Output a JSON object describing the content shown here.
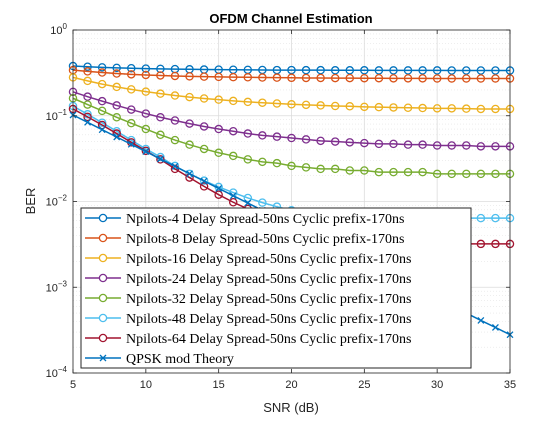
{
  "chart_data": {
    "type": "line",
    "title": "OFDM Channel Estimation",
    "xlabel": "SNR (dB)",
    "ylabel": "BER",
    "xlim": [
      5,
      35
    ],
    "ylim": [
      0.0001,
      1
    ],
    "yscale": "log",
    "grid": true,
    "minor_grid": true,
    "legend_position": "bottom-left",
    "x_ticks": [
      "5",
      "10",
      "15",
      "20",
      "25",
      "30",
      "35"
    ],
    "y_ticks": [
      {
        "value": 0.0001,
        "base": "10",
        "exp": "−4"
      },
      {
        "value": 0.001,
        "base": "10",
        "exp": "−3"
      },
      {
        "value": 0.01,
        "base": "10",
        "exp": "−2"
      },
      {
        "value": 0.1,
        "base": "10",
        "exp": "−1"
      },
      {
        "value": 1,
        "base": "10",
        "exp": "0"
      }
    ],
    "x": [
      5,
      6,
      7,
      8,
      9,
      10,
      11,
      12,
      13,
      14,
      15,
      16,
      17,
      18,
      19,
      20,
      21,
      22,
      23,
      24,
      25,
      26,
      27,
      28,
      29,
      30,
      31,
      32,
      33,
      34,
      35
    ],
    "series": [
      {
        "name": "Npilots-4 Delay Spread-50ns Cyclic prefix-170ns",
        "color": "#0072BD",
        "marker": "circle",
        "values": [
          0.38,
          0.373,
          0.367,
          0.362,
          0.358,
          0.355,
          0.352,
          0.35,
          0.348,
          0.346,
          0.345,
          0.344,
          0.343,
          0.342,
          0.341,
          0.341,
          0.34,
          0.34,
          0.339,
          0.339,
          0.339,
          0.338,
          0.338,
          0.338,
          0.338,
          0.338,
          0.337,
          0.337,
          0.337,
          0.337,
          0.337
        ]
      },
      {
        "name": "Npilots-8 Delay Spread-50ns Cyclic prefix-170ns",
        "color": "#D95319",
        "marker": "circle",
        "values": [
          0.34,
          0.329,
          0.319,
          0.311,
          0.304,
          0.299,
          0.295,
          0.291,
          0.288,
          0.286,
          0.284,
          0.282,
          0.281,
          0.279,
          0.278,
          0.277,
          0.276,
          0.276,
          0.275,
          0.275,
          0.274,
          0.274,
          0.273,
          0.273,
          0.273,
          0.272,
          0.272,
          0.272,
          0.272,
          0.272,
          0.272
        ]
      },
      {
        "name": "Npilots-16 Delay Spread-50ns Cyclic prefix-170ns",
        "color": "#EDB120",
        "marker": "circle",
        "values": [
          0.28,
          0.255,
          0.234,
          0.217,
          0.203,
          0.191,
          0.181,
          0.172,
          0.165,
          0.159,
          0.154,
          0.149,
          0.145,
          0.142,
          0.139,
          0.136,
          0.134,
          0.132,
          0.13,
          0.129,
          0.127,
          0.126,
          0.125,
          0.124,
          0.123,
          0.122,
          0.122,
          0.121,
          0.12,
          0.12,
          0.12
        ]
      },
      {
        "name": "Npilots-24 Delay Spread-50ns Cyclic prefix-170ns",
        "color": "#7E2F8E",
        "marker": "circle",
        "values": [
          0.19,
          0.167,
          0.148,
          0.132,
          0.118,
          0.106,
          0.096,
          0.088,
          0.081,
          0.075,
          0.07,
          0.066,
          0.062,
          0.059,
          0.057,
          0.055,
          0.053,
          0.051,
          0.05,
          0.049,
          0.048,
          0.047,
          0.047,
          0.046,
          0.046,
          0.045,
          0.045,
          0.045,
          0.044,
          0.044,
          0.044
        ]
      },
      {
        "name": "Npilots-32 Delay Spread-50ns Cyclic prefix-170ns",
        "color": "#77AC30",
        "marker": "circle",
        "values": [
          0.16,
          0.135,
          0.114,
          0.096,
          0.082,
          0.07,
          0.06,
          0.052,
          0.046,
          0.041,
          0.037,
          0.034,
          0.031,
          0.029,
          0.028,
          0.026,
          0.025,
          0.024,
          0.024,
          0.023,
          0.023,
          0.022,
          0.022,
          0.022,
          0.022,
          0.021,
          0.021,
          0.021,
          0.021,
          0.021,
          0.021
        ]
      },
      {
        "name": "Npilots-48 Delay Spread-50ns Cyclic prefix-170ns",
        "color": "#4DBEEE",
        "marker": "circle",
        "values": [
          0.13,
          0.104,
          0.083,
          0.066,
          0.052,
          0.041,
          0.033,
          0.026,
          0.021,
          0.0175,
          0.0148,
          0.0127,
          0.011,
          0.0097,
          0.0087,
          0.0079,
          0.0074,
          0.007,
          0.0068,
          0.0066,
          0.0065,
          0.0064,
          0.0064,
          0.0064,
          0.0064,
          0.0064,
          0.0064,
          0.0064,
          0.0064,
          0.0064,
          0.0064
        ]
      },
      {
        "name": "Npilots-64 Delay Spread-50ns Cyclic prefix-170ns",
        "color": "#A2142F",
        "marker": "circle",
        "values": [
          0.12,
          0.097,
          0.078,
          0.062,
          0.049,
          0.039,
          0.031,
          0.024,
          0.019,
          0.015,
          0.012,
          0.0098,
          0.0082,
          0.007,
          0.0061,
          0.0054,
          0.0048,
          0.0044,
          0.0041,
          0.0038,
          0.0036,
          0.0035,
          0.0034,
          0.0033,
          0.0033,
          0.0032,
          0.0032,
          0.0032,
          0.0032,
          0.0032,
          0.0032
        ]
      },
      {
        "name": "QPSK mod Theory",
        "color": "#0072BD",
        "marker": "x",
        "values": [
          0.102,
          0.0838,
          0.0688,
          0.0565,
          0.0464,
          0.0382,
          0.0313,
          0.0257,
          0.0211,
          0.0173,
          0.0142,
          0.0117,
          0.0096,
          0.0079,
          0.0065,
          0.0053,
          0.00435,
          0.00357,
          0.00293,
          0.00241,
          0.00198,
          0.00163,
          0.00134,
          0.0011,
          0.0009,
          0.00074,
          0.00061,
          0.0005,
          0.00041,
          0.00034,
          0.00028
        ]
      }
    ]
  }
}
